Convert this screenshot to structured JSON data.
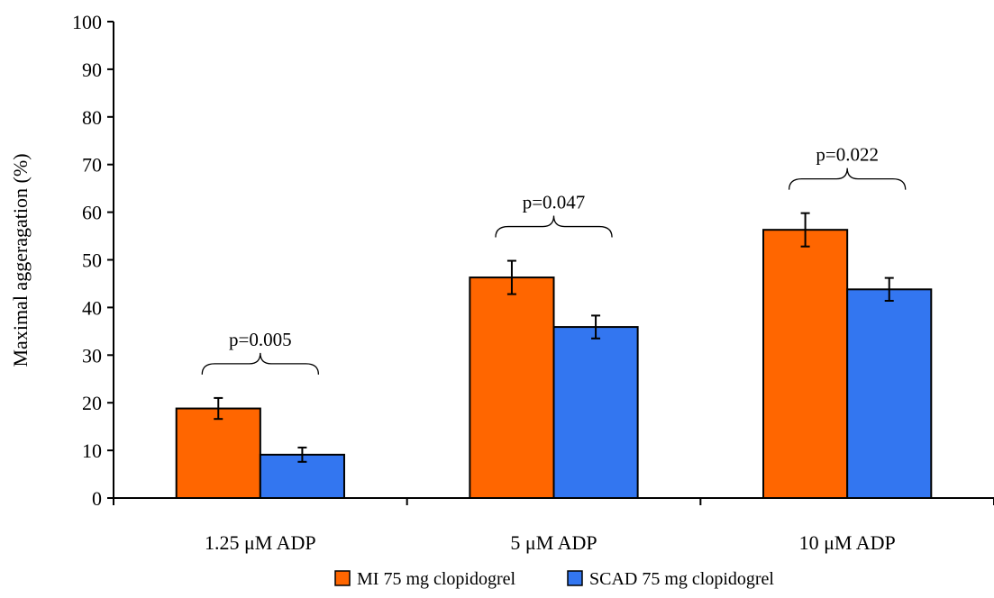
{
  "chart_data": {
    "type": "bar",
    "title": "",
    "xlabel": "",
    "ylabel": "Maximal aggeragation (%)",
    "ylim": [
      0,
      100
    ],
    "yticks": [
      0,
      10,
      20,
      30,
      40,
      50,
      60,
      70,
      80,
      90,
      100
    ],
    "grid": false,
    "legend_position": "bottom",
    "categories": [
      "1.25 μM ADP",
      "5 μM ADP",
      "10 μM ADP"
    ],
    "series": [
      {
        "name": "MI 75 mg clopidogrel",
        "color": "#ff6600",
        "values": [
          18.8,
          46.3,
          56.3
        ],
        "errors": [
          2.2,
          3.5,
          3.5
        ]
      },
      {
        "name": "SCAD 75 mg clopidogrel",
        "color": "#3376f0",
        "values": [
          9.1,
          35.9,
          43.8
        ],
        "errors": [
          1.5,
          2.4,
          2.4
        ]
      }
    ],
    "annotations": [
      "p=0.005",
      "p=0.047",
      "p=0.022"
    ]
  }
}
